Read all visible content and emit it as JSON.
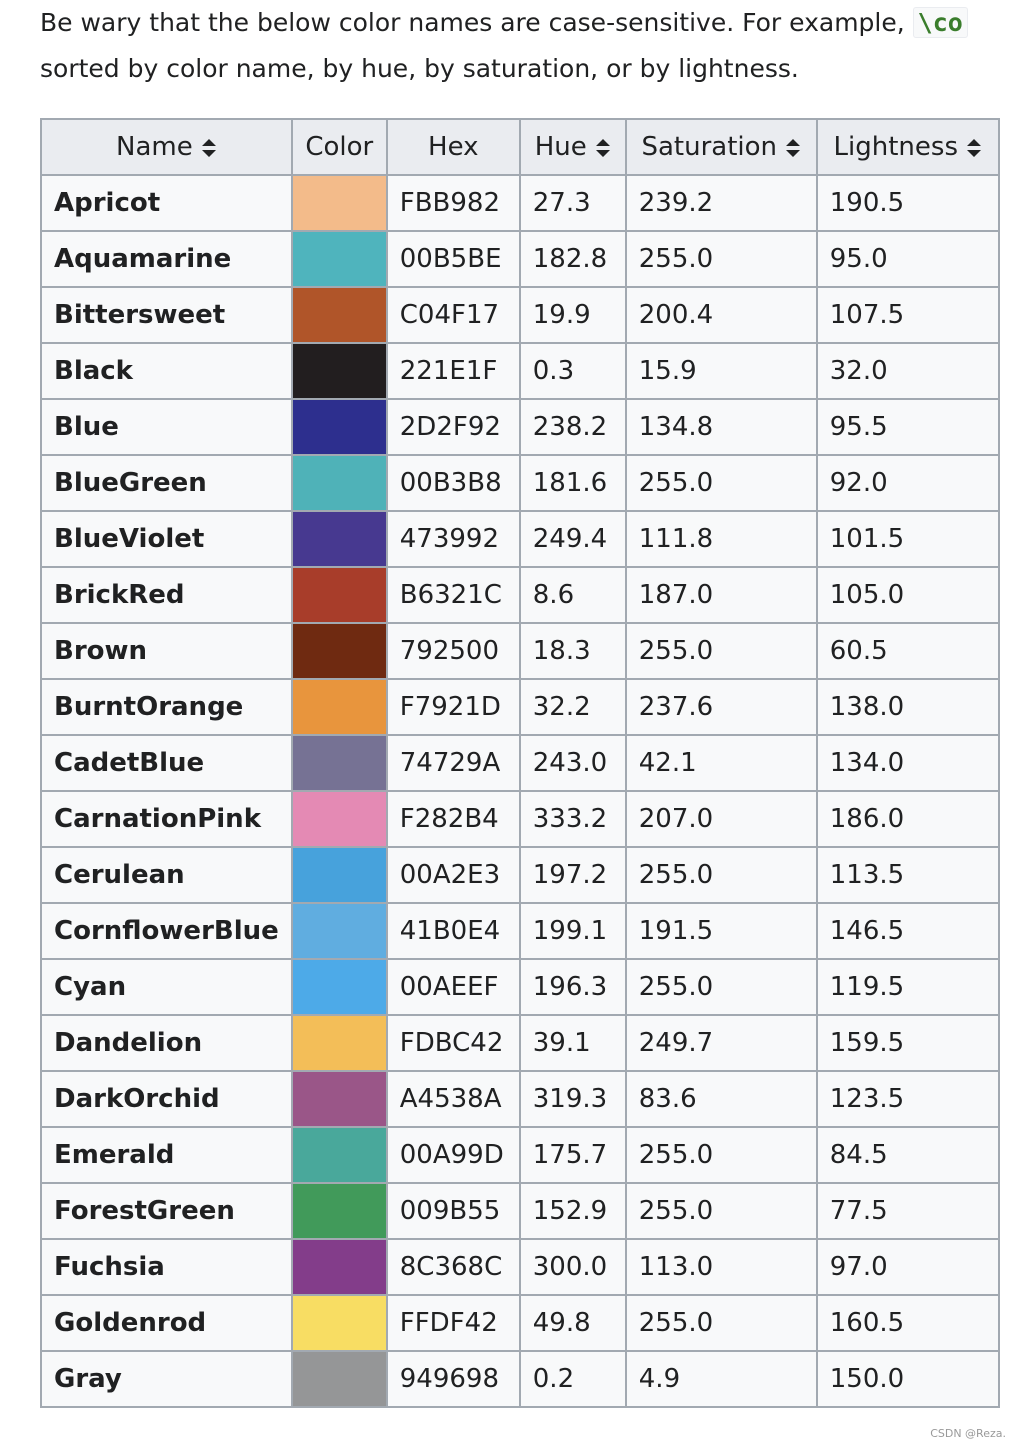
{
  "intro": {
    "text_before_code": "Be wary that the below color names are case-sensitive. For example, ",
    "code": "\\co",
    "second_line": "sorted by color name, by hue, by saturation, or by lightness."
  },
  "table": {
    "columns": [
      {
        "label": "Name",
        "sortable": true
      },
      {
        "label": "Color",
        "sortable": false
      },
      {
        "label": "Hex",
        "sortable": false
      },
      {
        "label": "Hue",
        "sortable": true
      },
      {
        "label": "Saturation",
        "sortable": true
      },
      {
        "label": "Lightness",
        "sortable": true
      }
    ],
    "rows": [
      {
        "name": "Apricot",
        "swatch": "#f3bb8a",
        "hex": "FBB982",
        "hue": "27.3",
        "saturation": "239.2",
        "lightness": "190.5"
      },
      {
        "name": "Aquamarine",
        "swatch": "#4fb4bd",
        "hex": "00B5BE",
        "hue": "182.8",
        "saturation": "255.0",
        "lightness": "95.0"
      },
      {
        "name": "Bittersweet",
        "swatch": "#b05529",
        "hex": "C04F17",
        "hue": "19.9",
        "saturation": "200.4",
        "lightness": "107.5"
      },
      {
        "name": "Black",
        "swatch": "#221e1f",
        "hex": "221E1F",
        "hue": "0.3",
        "saturation": "15.9",
        "lightness": "32.0"
      },
      {
        "name": "Blue",
        "swatch": "#2d2f8e",
        "hex": "2D2F92",
        "hue": "238.2",
        "saturation": "134.8",
        "lightness": "95.5"
      },
      {
        "name": "BlueGreen",
        "swatch": "#4fb2b8",
        "hex": "00B3B8",
        "hue": "181.6",
        "saturation": "255.0",
        "lightness": "92.0"
      },
      {
        "name": "BlueViolet",
        "swatch": "#473990",
        "hex": "473992",
        "hue": "249.4",
        "saturation": "111.8",
        "lightness": "101.5"
      },
      {
        "name": "BrickRed",
        "swatch": "#a83d2a",
        "hex": "B6321C",
        "hue": "8.6",
        "saturation": "187.0",
        "lightness": "105.0"
      },
      {
        "name": "Brown",
        "swatch": "#6f2a11",
        "hex": "792500",
        "hue": "18.3",
        "saturation": "255.0",
        "lightness": "60.5"
      },
      {
        "name": "BurntOrange",
        "swatch": "#e8953d",
        "hex": "F7921D",
        "hue": "32.2",
        "saturation": "237.6",
        "lightness": "138.0"
      },
      {
        "name": "CadetBlue",
        "swatch": "#767294",
        "hex": "74729A",
        "hue": "243.0",
        "saturation": "42.1",
        "lightness": "134.0"
      },
      {
        "name": "CarnationPink",
        "swatch": "#e48ab4",
        "hex": "F282B4",
        "hue": "333.2",
        "saturation": "207.0",
        "lightness": "186.0"
      },
      {
        "name": "Cerulean",
        "swatch": "#47a2dc",
        "hex": "00A2E3",
        "hue": "197.2",
        "saturation": "255.0",
        "lightness": "113.5"
      },
      {
        "name": "CornflowerBlue",
        "swatch": "#60ade0",
        "hex": "41B0E4",
        "hue": "199.1",
        "saturation": "191.5",
        "lightness": "146.5"
      },
      {
        "name": "Cyan",
        "swatch": "#4daae8",
        "hex": "00AEEF",
        "hue": "196.3",
        "saturation": "255.0",
        "lightness": "119.5"
      },
      {
        "name": "Dandelion",
        "swatch": "#f3be58",
        "hex": "FDBC42",
        "hue": "39.1",
        "saturation": "249.7",
        "lightness": "159.5"
      },
      {
        "name": "DarkOrchid",
        "swatch": "#9a5688",
        "hex": "A4538A",
        "hue": "319.3",
        "saturation": "83.6",
        "lightness": "123.5"
      },
      {
        "name": "Emerald",
        "swatch": "#49a89b",
        "hex": "00A99D",
        "hue": "175.7",
        "saturation": "255.0",
        "lightness": "84.5"
      },
      {
        "name": "ForestGreen",
        "swatch": "#419a5a",
        "hex": "009B55",
        "hue": "152.9",
        "saturation": "255.0",
        "lightness": "77.5"
      },
      {
        "name": "Fuchsia",
        "swatch": "#833d8a",
        "hex": "8C368C",
        "hue": "300.0",
        "saturation": "113.0",
        "lightness": "97.0"
      },
      {
        "name": "Goldenrod",
        "swatch": "#f8dd63",
        "hex": "FFDF42",
        "hue": "49.8",
        "saturation": "255.0",
        "lightness": "160.5"
      },
      {
        "name": "Gray",
        "swatch": "#959697",
        "hex": "949698",
        "hue": "0.2",
        "saturation": "4.9",
        "lightness": "150.0"
      }
    ]
  },
  "watermark": "CSDN @Reza."
}
